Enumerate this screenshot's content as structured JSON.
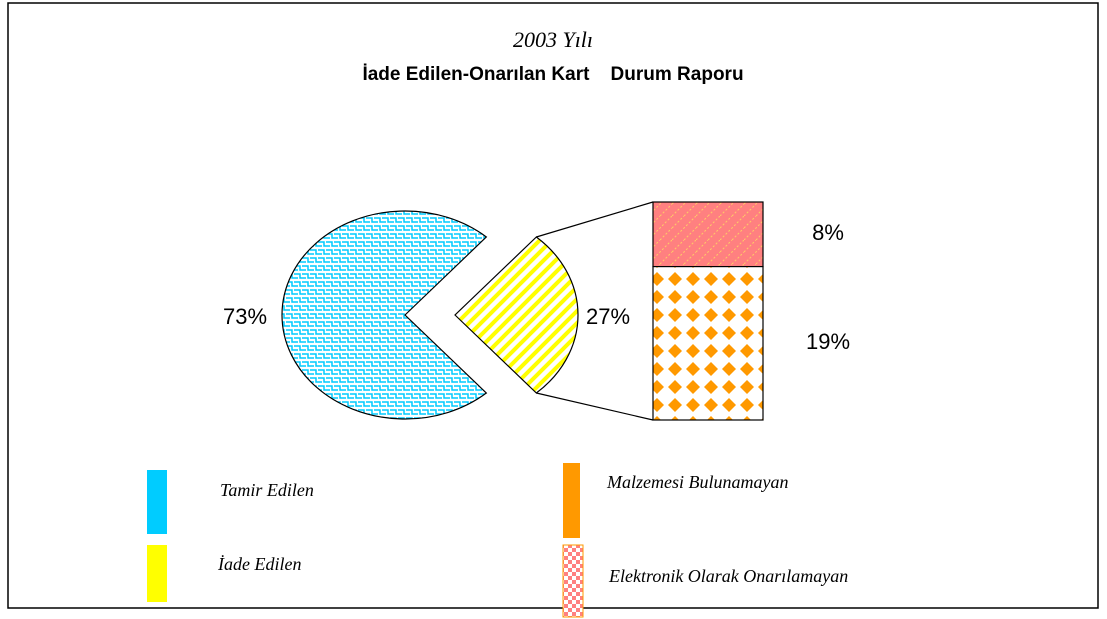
{
  "chart_data": {
    "type": "pie-of-bar",
    "subtitle": "2003 Yılı",
    "title": "İade Edilen-Onarılan Kart    Durum Raporu",
    "categories": [
      "Tamir Edilen",
      "İade Edilen"
    ],
    "values": [
      73,
      27
    ],
    "value_labels": [
      "73%",
      "27%"
    ],
    "colors": [
      "#00ccff",
      "#ffff00"
    ],
    "breakdown": {
      "categories": [
        "Elektronik Olarak Onarılamayan",
        "Malzemesi Bulunamayan"
      ],
      "values": [
        8,
        19
      ],
      "value_labels": [
        "8%",
        "19%"
      ],
      "colors": [
        "#ff8080",
        "#ff9900"
      ]
    }
  }
}
